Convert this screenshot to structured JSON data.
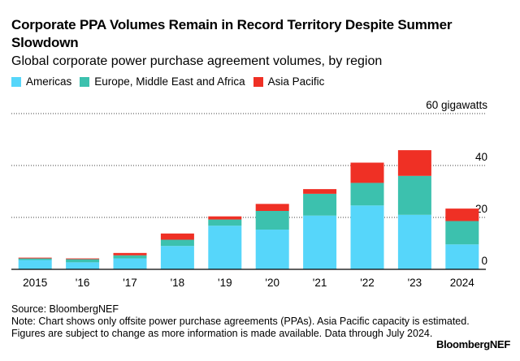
{
  "header": {
    "title": "Corporate PPA Volumes Remain in Record Territory Despite Summer Slowdown",
    "subtitle": "Global corporate power purchase agreement volumes, by region"
  },
  "legend": [
    {
      "label": "Americas",
      "color": "#56d6fa"
    },
    {
      "label": "Europe, Middle East and Africa",
      "color": "#3cc1ae"
    },
    {
      "label": "Asia Pacific",
      "color": "#ef3025"
    }
  ],
  "chart_data": {
    "type": "bar",
    "stacked": true,
    "categories": [
      "2015",
      "'16",
      "'17",
      "'18",
      "'19",
      "'20",
      "'21",
      "'22",
      "'23",
      "2024"
    ],
    "series": [
      {
        "name": "Americas",
        "color": "#56d6fa",
        "values": [
          3.6,
          2.7,
          4.2,
          9.0,
          16.8,
          15.3,
          20.7,
          24.6,
          21.0,
          9.6
        ]
      },
      {
        "name": "Europe, Middle East and Africa",
        "color": "#3cc1ae",
        "values": [
          0.6,
          1.2,
          1.2,
          2.4,
          2.4,
          7.2,
          8.4,
          8.7,
          15.0,
          9.0
        ]
      },
      {
        "name": "Asia Pacific",
        "color": "#ef3025",
        "values": [
          0.3,
          0.3,
          0.9,
          2.4,
          1.2,
          2.7,
          1.8,
          7.8,
          9.9,
          4.8
        ]
      }
    ],
    "yticks": [
      {
        "value": 0,
        "label": "0"
      },
      {
        "value": 20,
        "label": "20"
      },
      {
        "value": 40,
        "label": "40"
      },
      {
        "value": 60,
        "label": "60 gigawatts"
      }
    ],
    "ylim": [
      0,
      60
    ],
    "grid": true,
    "axis_side": "right",
    "legend_position": "top-left"
  },
  "footer": {
    "source": "Source: BloombergNEF",
    "note": "Note: Chart shows only offsite power purchase agreements (PPAs). Asia Pacific capacity is estimated. Figures are subject to change as more information is made available. Data through July 2024.",
    "brand": "BloombergNEF"
  }
}
